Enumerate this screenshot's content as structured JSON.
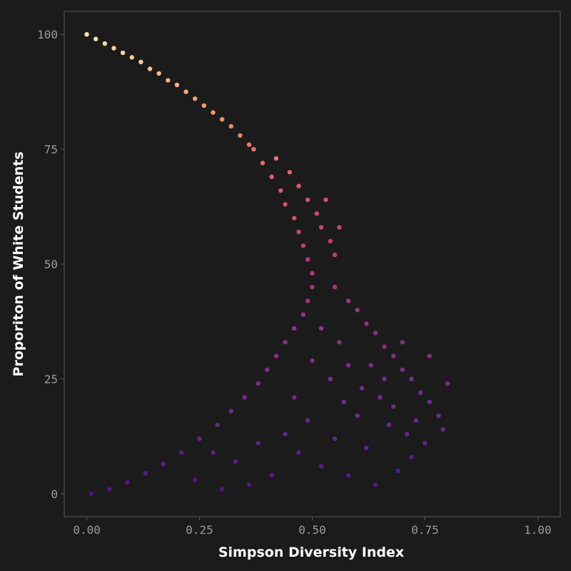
{
  "chart_data": {
    "type": "scatter",
    "title": "",
    "xlabel": "Simpson Diversity Index",
    "ylabel": "Proporiton of White Students",
    "xlim": [
      -0.05,
      1.05
    ],
    "ylim": [
      -5,
      105
    ],
    "x_ticks": [
      {
        "value": 0.0,
        "label": "0.00"
      },
      {
        "value": 0.25,
        "label": "0.25"
      },
      {
        "value": 0.5,
        "label": "0.50"
      },
      {
        "value": 0.75,
        "label": "0.75"
      },
      {
        "value": 1.0,
        "label": "1.00"
      }
    ],
    "y_ticks": [
      {
        "value": 0,
        "label": "0"
      },
      {
        "value": 25,
        "label": "25"
      },
      {
        "value": 50,
        "label": "50"
      },
      {
        "value": 75,
        "label": "75"
      },
      {
        "value": 100,
        "label": "100"
      }
    ],
    "grid": false,
    "legend": "none",
    "color_scale": [
      "#4a1486",
      "#6a2a8f",
      "#8e2d84",
      "#b73779",
      "#e1566b",
      "#f8966d",
      "#fde3a7"
    ],
    "series": [
      {
        "values": [
          {
            "x": 0.0,
            "y": 100
          },
          {
            "x": 0.02,
            "y": 99
          },
          {
            "x": 0.04,
            "y": 98
          },
          {
            "x": 0.06,
            "y": 97
          },
          {
            "x": 0.08,
            "y": 96
          },
          {
            "x": 0.1,
            "y": 95
          },
          {
            "x": 0.12,
            "y": 94
          },
          {
            "x": 0.14,
            "y": 92.5
          },
          {
            "x": 0.16,
            "y": 91.5
          },
          {
            "x": 0.18,
            "y": 90
          },
          {
            "x": 0.2,
            "y": 89
          },
          {
            "x": 0.22,
            "y": 87.5
          },
          {
            "x": 0.24,
            "y": 86
          },
          {
            "x": 0.26,
            "y": 84.5
          },
          {
            "x": 0.28,
            "y": 83
          },
          {
            "x": 0.3,
            "y": 81.5
          },
          {
            "x": 0.32,
            "y": 80
          },
          {
            "x": 0.34,
            "y": 78
          },
          {
            "x": 0.36,
            "y": 76
          },
          {
            "x": 0.37,
            "y": 75
          },
          {
            "x": 0.39,
            "y": 72
          },
          {
            "x": 0.41,
            "y": 69
          },
          {
            "x": 0.43,
            "y": 66
          },
          {
            "x": 0.44,
            "y": 63
          },
          {
            "x": 0.46,
            "y": 60
          },
          {
            "x": 0.47,
            "y": 57
          },
          {
            "x": 0.48,
            "y": 54
          },
          {
            "x": 0.49,
            "y": 51
          },
          {
            "x": 0.5,
            "y": 48
          },
          {
            "x": 0.42,
            "y": 73
          },
          {
            "x": 0.45,
            "y": 70
          },
          {
            "x": 0.47,
            "y": 67
          },
          {
            "x": 0.49,
            "y": 64
          },
          {
            "x": 0.51,
            "y": 61
          },
          {
            "x": 0.52,
            "y": 58
          },
          {
            "x": 0.54,
            "y": 55
          },
          {
            "x": 0.55,
            "y": 52
          },
          {
            "x": 0.53,
            "y": 64
          },
          {
            "x": 0.56,
            "y": 58
          },
          {
            "x": 0.5,
            "y": 45
          },
          {
            "x": 0.49,
            "y": 42
          },
          {
            "x": 0.48,
            "y": 39
          },
          {
            "x": 0.46,
            "y": 36
          },
          {
            "x": 0.44,
            "y": 33
          },
          {
            "x": 0.42,
            "y": 30
          },
          {
            "x": 0.4,
            "y": 27
          },
          {
            "x": 0.38,
            "y": 24
          },
          {
            "x": 0.35,
            "y": 21
          },
          {
            "x": 0.32,
            "y": 18
          },
          {
            "x": 0.29,
            "y": 15
          },
          {
            "x": 0.25,
            "y": 12
          },
          {
            "x": 0.21,
            "y": 9
          },
          {
            "x": 0.17,
            "y": 6.5
          },
          {
            "x": 0.13,
            "y": 4.5
          },
          {
            "x": 0.09,
            "y": 2.5
          },
          {
            "x": 0.05,
            "y": 1
          },
          {
            "x": 0.01,
            "y": 0
          },
          {
            "x": 0.55,
            "y": 45
          },
          {
            "x": 0.58,
            "y": 42
          },
          {
            "x": 0.6,
            "y": 40
          },
          {
            "x": 0.62,
            "y": 37
          },
          {
            "x": 0.64,
            "y": 35
          },
          {
            "x": 0.66,
            "y": 32
          },
          {
            "x": 0.68,
            "y": 30
          },
          {
            "x": 0.7,
            "y": 27
          },
          {
            "x": 0.72,
            "y": 25
          },
          {
            "x": 0.74,
            "y": 22
          },
          {
            "x": 0.76,
            "y": 20
          },
          {
            "x": 0.78,
            "y": 17
          },
          {
            "x": 0.79,
            "y": 14
          },
          {
            "x": 0.8,
            "y": 24
          },
          {
            "x": 0.52,
            "y": 36
          },
          {
            "x": 0.56,
            "y": 33
          },
          {
            "x": 0.58,
            "y": 28
          },
          {
            "x": 0.54,
            "y": 25
          },
          {
            "x": 0.61,
            "y": 23
          },
          {
            "x": 0.65,
            "y": 21
          },
          {
            "x": 0.6,
            "y": 17
          },
          {
            "x": 0.67,
            "y": 15
          },
          {
            "x": 0.71,
            "y": 13
          },
          {
            "x": 0.75,
            "y": 11
          },
          {
            "x": 0.72,
            "y": 8
          },
          {
            "x": 0.69,
            "y": 5
          },
          {
            "x": 0.64,
            "y": 2
          },
          {
            "x": 0.58,
            "y": 4
          },
          {
            "x": 0.52,
            "y": 6
          },
          {
            "x": 0.47,
            "y": 9
          },
          {
            "x": 0.44,
            "y": 13
          },
          {
            "x": 0.49,
            "y": 16
          },
          {
            "x": 0.46,
            "y": 21
          },
          {
            "x": 0.5,
            "y": 29
          },
          {
            "x": 0.41,
            "y": 4
          },
          {
            "x": 0.36,
            "y": 2
          },
          {
            "x": 0.3,
            "y": 1
          },
          {
            "x": 0.24,
            "y": 3
          },
          {
            "x": 0.33,
            "y": 7
          },
          {
            "x": 0.38,
            "y": 11
          },
          {
            "x": 0.28,
            "y": 9
          },
          {
            "x": 0.55,
            "y": 12
          },
          {
            "x": 0.62,
            "y": 10
          },
          {
            "x": 0.68,
            "y": 19
          },
          {
            "x": 0.73,
            "y": 16
          },
          {
            "x": 0.57,
            "y": 20
          },
          {
            "x": 0.63,
            "y": 28
          },
          {
            "x": 0.66,
            "y": 25
          },
          {
            "x": 0.7,
            "y": 33
          },
          {
            "x": 0.76,
            "y": 30
          }
        ]
      }
    ]
  }
}
